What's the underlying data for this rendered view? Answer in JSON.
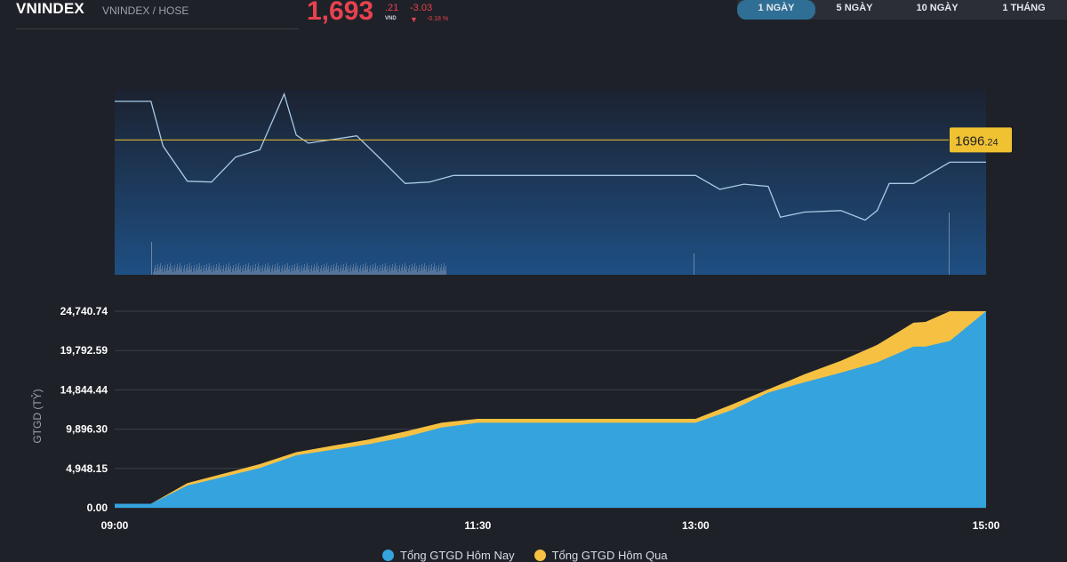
{
  "header": {
    "symbol": "VNINDEX",
    "exchange": "VNINDEX / HOSE",
    "price_main": "1,693",
    "price_decimal": ".21",
    "price_unit": "VND",
    "change_value": "-3.03",
    "change_percent": "-0.18 %",
    "change_arrow": "▼"
  },
  "range_tabs": [
    {
      "label": "1 NGÀY",
      "active": true
    },
    {
      "label": "5 NGÀY",
      "active": false
    },
    {
      "label": "10 NGÀY",
      "active": false
    },
    {
      "label": "1 THÁNG",
      "active": false
    }
  ],
  "colors": {
    "up": "#e8424f",
    "reference": "#f0c232",
    "price_line": "#a9c9e6",
    "today": "#35a3de",
    "yesterday": "#f6c142"
  },
  "chart_data": [
    {
      "type": "line",
      "name": "VNINDEX intraday price",
      "reference_label_int": "1696",
      "reference_label_dec": ".24",
      "reference_price": 1696.24,
      "x_range": [
        "09:00",
        "15:00"
      ],
      "times": [
        "09:00",
        "09:15",
        "09:20",
        "09:30",
        "09:40",
        "09:50",
        "10:00",
        "10:10",
        "10:15",
        "10:20",
        "10:30",
        "10:40",
        "10:50",
        "11:00",
        "11:10",
        "11:20",
        "11:30",
        "12:00",
        "13:00",
        "13:10",
        "13:20",
        "13:30",
        "13:35",
        "13:45",
        "14:00",
        "14:10",
        "14:15",
        "14:20",
        "14:25",
        "14:30",
        "14:45",
        "15:00"
      ],
      "values": [
        1701.5,
        1701.5,
        1695.4,
        1690.6,
        1690.5,
        1693.9,
        1694.9,
        1702.5,
        1696.9,
        1695.8,
        1696.3,
        1696.8,
        1693.6,
        1690.3,
        1690.5,
        1691.4,
        1691.4,
        1691.4,
        1691.4,
        1689.5,
        1690.2,
        1689.9,
        1685.7,
        1686.4,
        1686.6,
        1685.3,
        1686.6,
        1690.3,
        1690.3,
        1690.3,
        1693.2,
        1693.2
      ],
      "volume_bars": "minor volume bars along the bottom of the price panel"
    },
    {
      "type": "area",
      "ylabel": "GTGD (TỶ)",
      "y_ticks": [
        "0.00",
        "4,948.15",
        "9,896.30",
        "14,844.44",
        "19,792.59",
        "24,740.74"
      ],
      "ylim": [
        0,
        24740.74
      ],
      "x_ticks": [
        "09:00",
        "11:30",
        "13:00",
        "15:00"
      ],
      "x_range": [
        "09:00",
        "15:00"
      ],
      "times": [
        "09:00",
        "09:15",
        "09:30",
        "09:45",
        "10:00",
        "10:15",
        "10:30",
        "10:45",
        "11:00",
        "11:15",
        "11:30",
        "12:00",
        "13:00",
        "13:15",
        "13:30",
        "13:45",
        "14:00",
        "14:15",
        "14:30",
        "14:35",
        "14:45",
        "15:00"
      ],
      "series": [
        {
          "name": "Tổng GTGD Hôm Nay",
          "values": [
            500,
            500,
            2800,
            3900,
            5000,
            6600,
            7300,
            8000,
            8900,
            10100,
            10700,
            10700,
            10700,
            12300,
            14500,
            15800,
            17000,
            18300,
            20300,
            20300,
            21000,
            24740
          ]
        },
        {
          "name": "Tổng GTGD Hôm Qua",
          "values": [
            500,
            500,
            3100,
            4300,
            5500,
            7000,
            7800,
            8600,
            9600,
            10700,
            11200,
            11200,
            11200,
            13000,
            14900,
            16800,
            18500,
            20500,
            23300,
            23400,
            24740,
            24740
          ]
        }
      ],
      "legend_position": "bottom-center",
      "grid": true
    }
  ]
}
